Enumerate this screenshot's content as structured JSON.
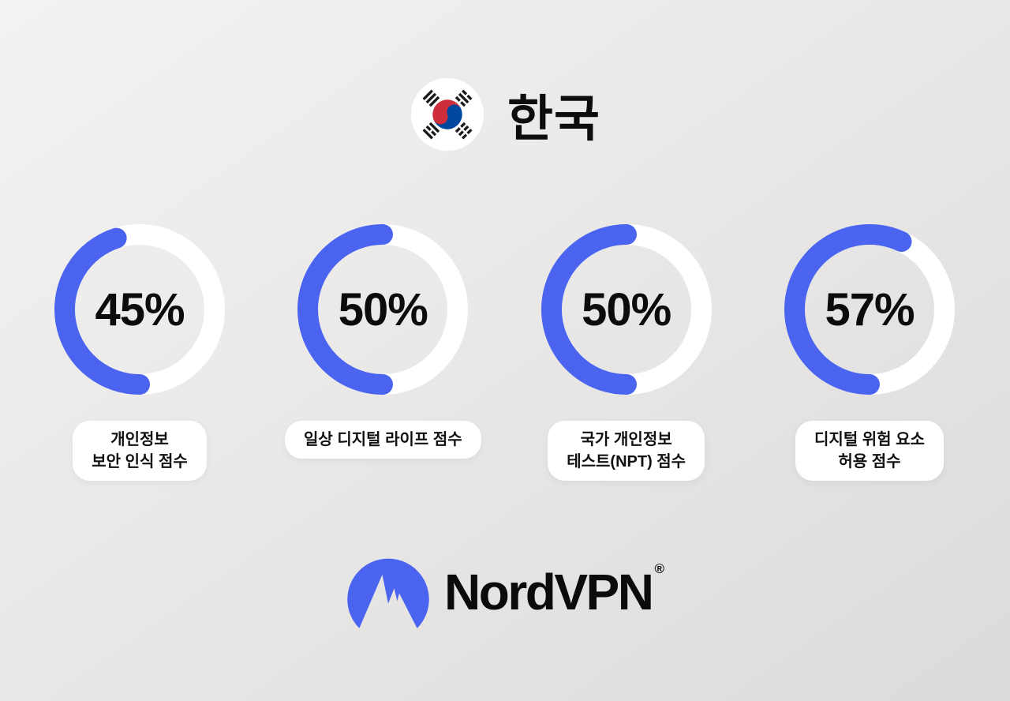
{
  "colors": {
    "accent": "#4A64F0",
    "track": "#FFFFFF",
    "text": "#0D0D0D",
    "pill_bg": "#FFFFFF",
    "flag_red": "#CD2E3A",
    "flag_blue": "#0047A0"
  },
  "header": {
    "title": "한국",
    "flag_icon": "south-korea-flag"
  },
  "chart_data": {
    "type": "donut",
    "unit": "%",
    "items": [
      {
        "value": 45,
        "display": "45%",
        "label": "개인정보 보안 인식 점수",
        "label_lines": [
          "개인정보",
          "보안 인식 점수"
        ]
      },
      {
        "value": 50,
        "display": "50%",
        "label": "일상 디지털 라이프 점수",
        "label_lines": [
          "일상 디지털 라이프 점수"
        ]
      },
      {
        "value": 50,
        "display": "50%",
        "label": "국가 개인정보 테스트(NPT) 점수",
        "label_lines": [
          "국가 개인정보",
          "테스트(NPT) 점수"
        ]
      },
      {
        "value": 57,
        "display": "57%",
        "label": "디지털 위험 요소 허용 점수",
        "label_lines": [
          "디지털 위험 요소",
          "허용 점수"
        ]
      }
    ],
    "style": {
      "start_angle": "bottom",
      "sweep": "clockwise-through-left",
      "track_color": "#FFFFFF",
      "arc_color": "#4A64F0"
    }
  },
  "footer": {
    "brand": "NordVPN",
    "registered_mark": "®",
    "logo_icon": "nordvpn-logo"
  }
}
